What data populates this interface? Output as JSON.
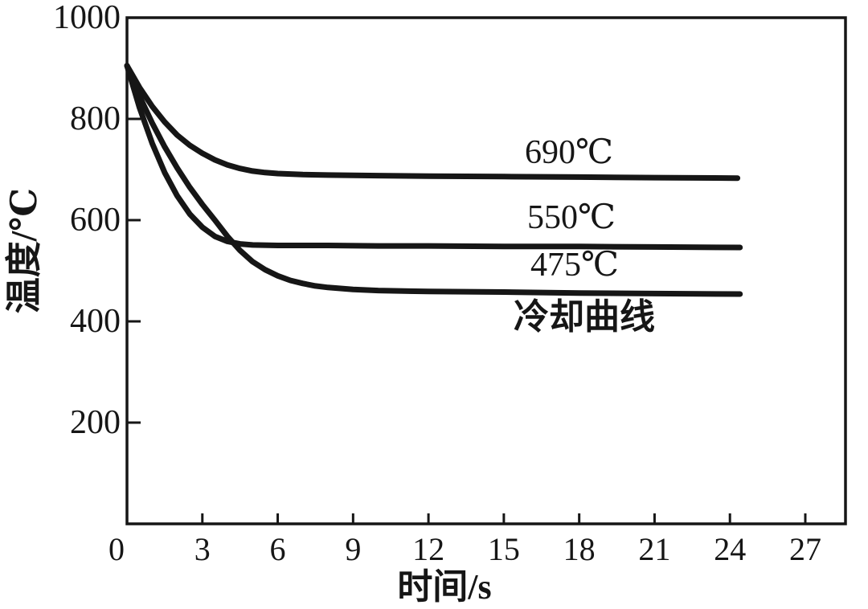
{
  "figure": {
    "background": "#ffffff",
    "ink_color": "#161616"
  },
  "chart_data": {
    "type": "line",
    "title": "",
    "xlabel": "时间/s",
    "ylabel": "温度/℃",
    "annotation": "冷却曲线",
    "xlim": [
      0,
      28.6
    ],
    "ylim": [
      0,
      1000
    ],
    "x_ticks": [
      0,
      3,
      6,
      9,
      12,
      15,
      18,
      21,
      24,
      27
    ],
    "y_ticks": [
      200,
      400,
      600,
      800,
      1000
    ],
    "grid": false,
    "legend_position": "inline-labels-above-curves",
    "series": [
      {
        "name": "isothermal-hold-690",
        "label": "690℃",
        "plateau_temperature_c": 690,
        "points": [
          [
            0,
            905
          ],
          [
            0.5,
            862
          ],
          [
            1,
            825
          ],
          [
            1.5,
            794
          ],
          [
            2,
            768
          ],
          [
            2.5,
            748
          ],
          [
            3,
            732
          ],
          [
            3.5,
            719
          ],
          [
            4,
            709
          ],
          [
            4.5,
            702
          ],
          [
            5,
            697
          ],
          [
            5.5,
            694
          ],
          [
            6,
            692
          ],
          [
            7,
            690
          ],
          [
            8,
            689
          ],
          [
            10,
            688
          ],
          [
            12,
            687
          ],
          [
            15,
            686
          ],
          [
            18,
            685
          ],
          [
            21,
            684
          ],
          [
            24.3,
            683
          ]
        ]
      },
      {
        "name": "isothermal-hold-550",
        "label": "550℃",
        "plateau_temperature_c": 550,
        "points": [
          [
            0,
            905
          ],
          [
            0.5,
            822
          ],
          [
            1,
            752
          ],
          [
            1.5,
            694
          ],
          [
            2,
            648
          ],
          [
            2.5,
            612
          ],
          [
            3,
            586
          ],
          [
            3.5,
            568
          ],
          [
            4,
            558
          ],
          [
            4.5,
            553
          ],
          [
            5,
            551
          ],
          [
            6,
            550
          ],
          [
            8,
            550
          ],
          [
            10,
            549
          ],
          [
            12,
            549
          ],
          [
            15,
            548
          ],
          [
            18,
            548
          ],
          [
            21,
            547
          ],
          [
            24.4,
            546
          ]
        ]
      },
      {
        "name": "isothermal-hold-475",
        "label": "475℃",
        "plateau_temperature_c": 475,
        "points": [
          [
            0,
            905
          ],
          [
            0.5,
            845
          ],
          [
            1,
            792
          ],
          [
            1.5,
            745
          ],
          [
            2,
            703
          ],
          [
            2.5,
            665
          ],
          [
            3,
            631
          ],
          [
            3.5,
            600
          ],
          [
            4,
            568
          ],
          [
            4.5,
            540
          ],
          [
            5,
            518
          ],
          [
            5.5,
            502
          ],
          [
            6,
            490
          ],
          [
            6.5,
            481
          ],
          [
            7,
            475
          ],
          [
            7.5,
            470
          ],
          [
            8,
            467
          ],
          [
            9,
            463
          ],
          [
            10,
            461
          ],
          [
            12,
            459
          ],
          [
            15,
            458
          ],
          [
            18,
            456
          ],
          [
            21,
            455
          ],
          [
            24.4,
            454
          ]
        ]
      }
    ]
  },
  "labels": {
    "curve_690": "690℃",
    "curve_550": "550℃",
    "curve_475": "475℃",
    "annotation": "冷却曲线",
    "xlabel": "时间/s",
    "ylabel": "温度/℃",
    "x_tick_labels": [
      "0",
      "3",
      "6",
      "9",
      "12",
      "15",
      "18",
      "21",
      "24",
      "27"
    ],
    "y_tick_labels": [
      "200",
      "400",
      "600",
      "800",
      "1000"
    ]
  }
}
